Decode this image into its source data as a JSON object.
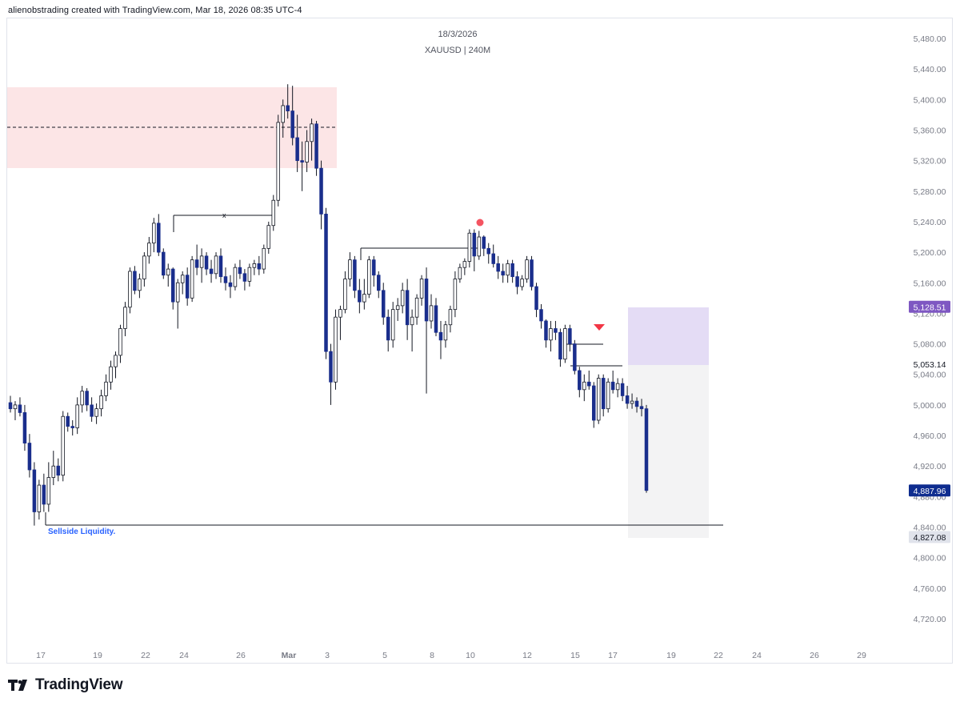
{
  "header": {
    "caption": "alienobstrading created with TradingView.com, Mar 18, 2026 08:35 UTC-4"
  },
  "footer": {
    "brand": "TradingView"
  },
  "chart_data": {
    "type": "candlestick",
    "title": "18/3/2026",
    "subtitle": "XAUUSD | 240M",
    "symbol": "XAUUSD",
    "interval": "240M",
    "grid": false,
    "ylim": [
      4690,
      5500
    ],
    "y_ticks": [
      "5,480.00",
      "5,440.00",
      "5,400.00",
      "5,360.00",
      "5,320.00",
      "5,280.00",
      "5,240.00",
      "5,200.00",
      "5,160.00",
      "5,120.00",
      "5,080.00",
      "5,040.00",
      "5,000.00",
      "4,960.00",
      "4,920.00",
      "4,880.00",
      "4,840.00",
      "4,800.00",
      "4,760.00",
      "4,720.00"
    ],
    "y_tick_values": [
      5480,
      5440,
      5400,
      5360,
      5320,
      5280,
      5240,
      5200,
      5160,
      5120,
      5080,
      5040,
      5000,
      4960,
      4920,
      4880,
      4840,
      4800,
      4760,
      4720
    ],
    "x_ticks": [
      "17",
      "19",
      "22",
      "24",
      "26",
      "Mar",
      "3",
      "5",
      "8",
      "10",
      "12",
      "15",
      "17",
      "19",
      "22",
      "24",
      "26",
      "29"
    ],
    "price_labels": [
      {
        "text": "5,128.51",
        "value": 5128.51,
        "bg": "#7e57c2",
        "fg": "#ffffff"
      },
      {
        "text": "5,053.14",
        "value": 5053.14,
        "bg": "#ffffff",
        "fg": "#131722"
      },
      {
        "text": "4,887.96",
        "value": 4887.96,
        "bg": "#0f2d8f",
        "fg": "#ffffff"
      },
      {
        "text": "4,827.08",
        "value": 4827.08,
        "bg": "#e0e3eb",
        "fg": "#131722"
      }
    ],
    "candles": [
      [
        5003,
        5012,
        4990,
        4995
      ],
      [
        4995,
        5005,
        4980,
        5000
      ],
      [
        5000,
        5010,
        4985,
        4990
      ],
      [
        4990,
        5000,
        4940,
        4950
      ],
      [
        4950,
        4962,
        4905,
        4915
      ],
      [
        4915,
        4925,
        4842,
        4860
      ],
      [
        4860,
        4902,
        4850,
        4895
      ],
      [
        4895,
        4910,
        4860,
        4870
      ],
      [
        4870,
        4925,
        4860,
        4905
      ],
      [
        4905,
        4940,
        4895,
        4920
      ],
      [
        4920,
        4930,
        4900,
        4908
      ],
      [
        4908,
        4992,
        4900,
        4985
      ],
      [
        4985,
        4990,
        4965,
        4972
      ],
      [
        4972,
        4980,
        4960,
        4970
      ],
      [
        4970,
        5010,
        4962,
        5000
      ],
      [
        5000,
        5025,
        4990,
        5018
      ],
      [
        5018,
        5022,
        4992,
        5000
      ],
      [
        5000,
        5010,
        4978,
        4985
      ],
      [
        4985,
        5002,
        4975,
        4995
      ],
      [
        4995,
        5020,
        4985,
        5012
      ],
      [
        5012,
        5040,
        5005,
        5030
      ],
      [
        5030,
        5058,
        5020,
        5050
      ],
      [
        5050,
        5070,
        5035,
        5065
      ],
      [
        5065,
        5105,
        5055,
        5100
      ],
      [
        5100,
        5135,
        5090,
        5128
      ],
      [
        5128,
        5180,
        5120,
        5175
      ],
      [
        5175,
        5182,
        5145,
        5150
      ],
      [
        5150,
        5172,
        5140,
        5165
      ],
      [
        5165,
        5200,
        5155,
        5195
      ],
      [
        5195,
        5220,
        5185,
        5212
      ],
      [
        5212,
        5245,
        5200,
        5238
      ],
      [
        5238,
        5250,
        5195,
        5200
      ],
      [
        5200,
        5205,
        5165,
        5170
      ],
      [
        5170,
        5185,
        5155,
        5178
      ],
      [
        5178,
        5180,
        5125,
        5135
      ],
      [
        5135,
        5165,
        5100,
        5160
      ],
      [
        5160,
        5175,
        5145,
        5170
      ],
      [
        5170,
        5180,
        5130,
        5140
      ],
      [
        5140,
        5195,
        5135,
        5190
      ],
      [
        5190,
        5210,
        5170,
        5180
      ],
      [
        5180,
        5205,
        5160,
        5195
      ],
      [
        5195,
        5200,
        5170,
        5178
      ],
      [
        5178,
        5190,
        5160,
        5172
      ],
      [
        5172,
        5200,
        5165,
        5195
      ],
      [
        5195,
        5205,
        5160,
        5168
      ],
      [
        5168,
        5180,
        5150,
        5160
      ],
      [
        5160,
        5170,
        5140,
        5155
      ],
      [
        5155,
        5185,
        5150,
        5180
      ],
      [
        5180,
        5190,
        5165,
        5172
      ],
      [
        5172,
        5178,
        5150,
        5162
      ],
      [
        5162,
        5185,
        5155,
        5180
      ],
      [
        5180,
        5190,
        5170,
        5185
      ],
      [
        5185,
        5195,
        5170,
        5178
      ],
      [
        5178,
        5210,
        5172,
        5205
      ],
      [
        5205,
        5240,
        5198,
        5235
      ],
      [
        5235,
        5275,
        5228,
        5268
      ],
      [
        5268,
        5380,
        5260,
        5370
      ],
      [
        5370,
        5400,
        5350,
        5392
      ],
      [
        5392,
        5420,
        5375,
        5385
      ],
      [
        5385,
        5418,
        5340,
        5350
      ],
      [
        5350,
        5380,
        5305,
        5320
      ],
      [
        5320,
        5345,
        5280,
        5318
      ],
      [
        5318,
        5360,
        5305,
        5345
      ],
      [
        5345,
        5375,
        5320,
        5368
      ],
      [
        5368,
        5372,
        5300,
        5310
      ],
      [
        5310,
        5320,
        5230,
        5250
      ],
      [
        5250,
        5258,
        5060,
        5070
      ],
      [
        5070,
        5080,
        5000,
        5030
      ],
      [
        5030,
        5125,
        5020,
        5115
      ],
      [
        5115,
        5130,
        5085,
        5125
      ],
      [
        5125,
        5175,
        5120,
        5165
      ],
      [
        5165,
        5200,
        5155,
        5190
      ],
      [
        5190,
        5195,
        5140,
        5150
      ],
      [
        5150,
        5165,
        5120,
        5135
      ],
      [
        5135,
        5165,
        5125,
        5145
      ],
      [
        5145,
        5195,
        5140,
        5190
      ],
      [
        5190,
        5195,
        5155,
        5170
      ],
      [
        5170,
        5175,
        5140,
        5150
      ],
      [
        5150,
        5160,
        5105,
        5115
      ],
      [
        5115,
        5125,
        5070,
        5085
      ],
      [
        5085,
        5135,
        5075,
        5125
      ],
      [
        5125,
        5140,
        5110,
        5130
      ],
      [
        5130,
        5160,
        5120,
        5150
      ],
      [
        5150,
        5165,
        5085,
        5105
      ],
      [
        5105,
        5125,
        5070,
        5115
      ],
      [
        5115,
        5145,
        5105,
        5140
      ],
      [
        5140,
        5170,
        5130,
        5165
      ],
      [
        5165,
        5180,
        5015,
        5110
      ],
      [
        5110,
        5145,
        5100,
        5130
      ],
      [
        5130,
        5140,
        5090,
        5095
      ],
      [
        5095,
        5110,
        5060,
        5085
      ],
      [
        5085,
        5110,
        5075,
        5105
      ],
      [
        5105,
        5130,
        5095,
        5125
      ],
      [
        5125,
        5175,
        5115,
        5165
      ],
      [
        5165,
        5185,
        5160,
        5180
      ],
      [
        5180,
        5192,
        5170,
        5188
      ],
      [
        5188,
        5230,
        5180,
        5225
      ],
      [
        5225,
        5230,
        5175,
        5195
      ],
      [
        5195,
        5228,
        5190,
        5220
      ],
      [
        5220,
        5222,
        5195,
        5205
      ],
      [
        5205,
        5212,
        5185,
        5198
      ],
      [
        5198,
        5210,
        5180,
        5185
      ],
      [
        5185,
        5195,
        5165,
        5175
      ],
      [
        5175,
        5185,
        5160,
        5170
      ],
      [
        5170,
        5190,
        5160,
        5185
      ],
      [
        5185,
        5190,
        5160,
        5168
      ],
      [
        5168,
        5175,
        5145,
        5155
      ],
      [
        5155,
        5170,
        5150,
        5165
      ],
      [
        5165,
        5195,
        5160,
        5190
      ],
      [
        5190,
        5195,
        5150,
        5155
      ],
      [
        5155,
        5160,
        5115,
        5125
      ],
      [
        5125,
        5132,
        5100,
        5110
      ],
      [
        5110,
        5112,
        5075,
        5085
      ],
      [
        5085,
        5110,
        5070,
        5100
      ],
      [
        5100,
        5110,
        5085,
        5095
      ],
      [
        5095,
        5100,
        5050,
        5060
      ],
      [
        5060,
        5105,
        5055,
        5100
      ],
      [
        5100,
        5105,
        5070,
        5080
      ],
      [
        5080,
        5085,
        5040,
        5045
      ],
      [
        5045,
        5050,
        5010,
        5020
      ],
      [
        5020,
        5040,
        5005,
        5030
      ],
      [
        5030,
        5045,
        5020,
        5025
      ],
      [
        5025,
        5030,
        4970,
        4980
      ],
      [
        4980,
        5040,
        4975,
        5035
      ],
      [
        5035,
        5040,
        4985,
        4995
      ],
      [
        4995,
        5035,
        4990,
        5030
      ],
      [
        5030,
        5045,
        5015,
        5020
      ],
      [
        5020,
        5035,
        5010,
        5028
      ],
      [
        5028,
        5035,
        5005,
        5012
      ],
      [
        5012,
        5025,
        4995,
        5002
      ],
      [
        5002,
        5015,
        4995,
        5005
      ],
      [
        5005,
        5010,
        4990,
        4998
      ],
      [
        4998,
        5008,
        4985,
        4995
      ],
      [
        4995,
        5000,
        4885,
        4888
      ]
    ]
  }
}
